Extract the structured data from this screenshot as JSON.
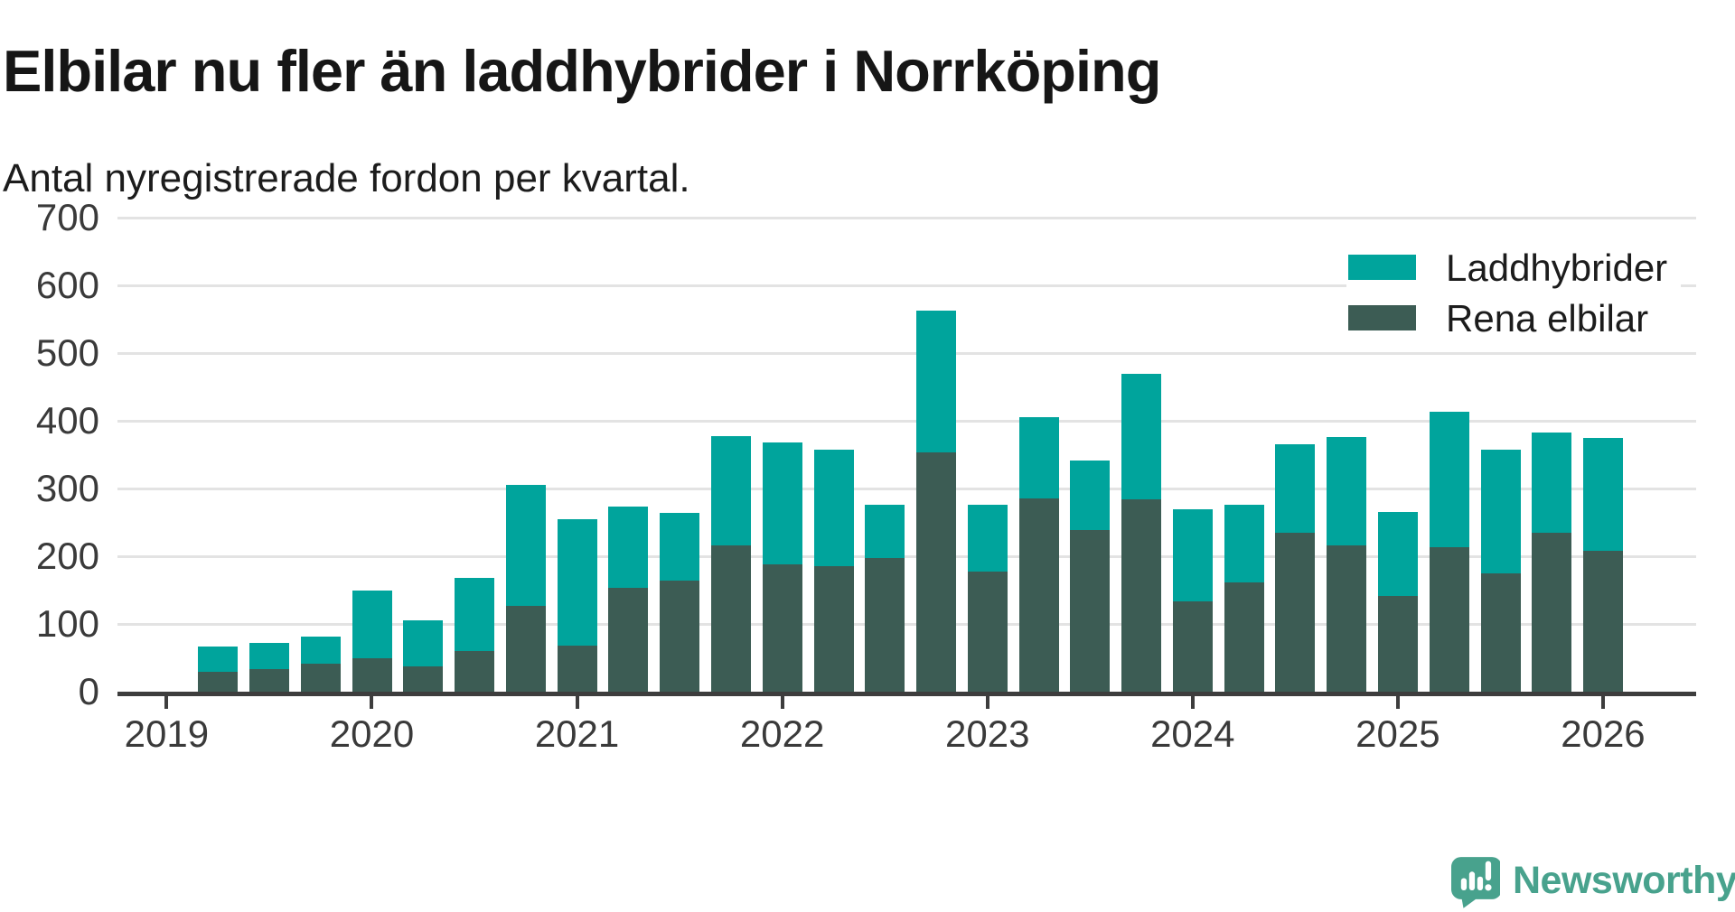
{
  "header": {
    "title": "Elbilar nu fler än laddhybrider i Norrköping",
    "subtitle": "Antal nyregistrerade fordon per kvartal."
  },
  "colors": {
    "laddhybrider": "#00a49c",
    "rena_elbilar": "#3c5c54",
    "axis": "#3d3d3d",
    "gridline": "#e3e3e3",
    "tick_text": "#3a3a3a",
    "logo": "#48a28d"
  },
  "legend": {
    "items": [
      {
        "label": "Laddhybrider",
        "color": "#00a49c"
      },
      {
        "label": "Rena elbilar",
        "color": "#3c5c54"
      }
    ]
  },
  "logo": {
    "text": "Newsworthy"
  },
  "chart_data": {
    "type": "bar",
    "stacked": true,
    "title": "Elbilar nu fler än laddhybrider i Norrköping",
    "subtitle": "Antal nyregistrerade fordon per kvartal.",
    "categories": [
      "2019 Q2",
      "2019 Q3",
      "2019 Q4",
      "2020 Q1",
      "2020 Q2",
      "2020 Q3",
      "2020 Q4",
      "2021 Q1",
      "2021 Q2",
      "2021 Q3",
      "2021 Q4",
      "2022 Q1",
      "2022 Q2",
      "2022 Q3",
      "2022 Q4",
      "2023 Q1",
      "2023 Q2",
      "2023 Q3",
      "2023 Q4",
      "2024 Q1",
      "2024 Q2",
      "2024 Q3",
      "2024 Q4",
      "2025 Q1",
      "2025 Q2",
      "2025 Q3",
      "2025 Q4",
      "2026 Q1"
    ],
    "series": [
      {
        "name": "Rena elbilar",
        "color": "#3c5c54",
        "stack_order": "bottom",
        "values": [
          30,
          34,
          41,
          50,
          37,
          60,
          127,
          68,
          153,
          164,
          216,
          188,
          186,
          197,
          353,
          177,
          285,
          239,
          284,
          134,
          161,
          235,
          216,
          141,
          214,
          175,
          235,
          208
        ]
      },
      {
        "name": "Laddhybrider",
        "color": "#00a49c",
        "stack_order": "top",
        "values": [
          37,
          38,
          41,
          100,
          68,
          108,
          178,
          187,
          120,
          100,
          162,
          180,
          171,
          79,
          210,
          99,
          121,
          102,
          185,
          136,
          115,
          131,
          160,
          124,
          199,
          183,
          148,
          167
        ]
      }
    ],
    "totals": [
      67,
      72,
      82,
      150,
      105,
      168,
      305,
      255,
      273,
      264,
      378,
      368,
      357,
      276,
      563,
      276,
      406,
      341,
      469,
      270,
      276,
      366,
      376,
      265,
      413,
      358,
      383,
      375
    ],
    "ylim": [
      0,
      700
    ],
    "yticks": [
      0,
      100,
      200,
      300,
      400,
      500,
      600,
      700
    ],
    "xticks": [
      "2019",
      "2020",
      "2021",
      "2022",
      "2023",
      "2024",
      "2025",
      "2026"
    ],
    "grid": "horizontal",
    "legend_position": "top-right"
  }
}
